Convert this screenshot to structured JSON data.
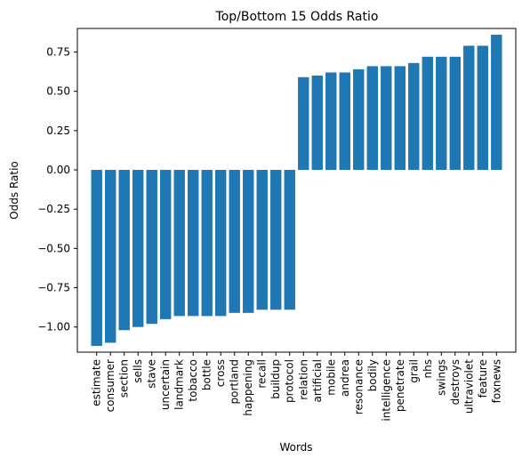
{
  "chart_data": {
    "type": "bar",
    "title": "Top/Bottom 15 Odds Ratio",
    "xlabel": "Words",
    "ylabel": "Odds Ratio",
    "ylim": [
      -1.16,
      0.9
    ],
    "yticks": [
      0.75,
      0.5,
      0.25,
      0.0,
      -0.25,
      -0.5,
      -0.75,
      -1.0
    ],
    "ytick_labels": [
      "0.75",
      "0.50",
      "0.25",
      "0.00",
      "−0.25",
      "−0.50",
      "−0.75",
      "−1.00"
    ],
    "bar_color": "#1f77b4",
    "grid": false,
    "legend": "none",
    "categories": [
      "estimate",
      "consumer",
      "section",
      "sells",
      "stave",
      "uncertain",
      "landmark",
      "tobacco",
      "bottle",
      "cross",
      "portland",
      "happening",
      "recall",
      "buildup",
      "protocol",
      "relation",
      "artificial",
      "mobile",
      "andrea",
      "resonance",
      "bodily",
      "intelligence",
      "penetrate",
      "grail",
      "nhs",
      "swings",
      "destroys",
      "ultraviolet",
      "feature",
      "foxnews"
    ],
    "values": [
      -1.12,
      -1.1,
      -1.02,
      -1.0,
      -0.98,
      -0.95,
      -0.93,
      -0.93,
      -0.93,
      -0.93,
      -0.91,
      -0.91,
      -0.89,
      -0.89,
      -0.89,
      0.59,
      0.6,
      0.62,
      0.62,
      0.64,
      0.66,
      0.66,
      0.66,
      0.68,
      0.72,
      0.72,
      0.72,
      0.79,
      0.79,
      0.86
    ]
  }
}
